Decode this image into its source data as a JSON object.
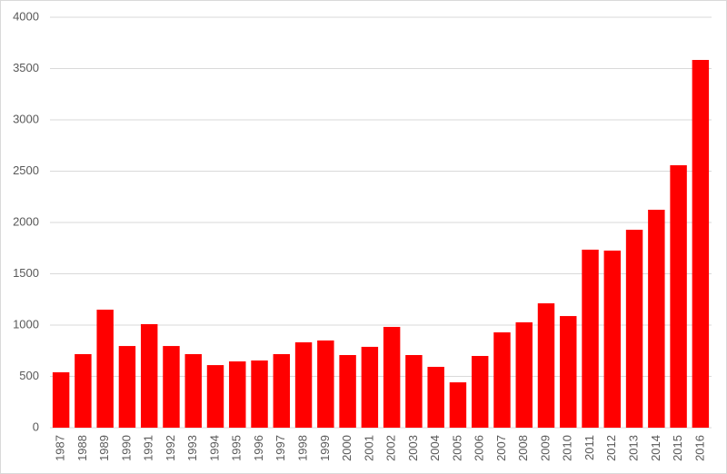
{
  "chart_data": {
    "type": "bar",
    "categories": [
      "1987",
      "1988",
      "1989",
      "1990",
      "1991",
      "1992",
      "1993",
      "1994",
      "1995",
      "1996",
      "1997",
      "1998",
      "1999",
      "2000",
      "2001",
      "2002",
      "2003",
      "2004",
      "2005",
      "2006",
      "2007",
      "2008",
      "2009",
      "2010",
      "2011",
      "2012",
      "2013",
      "2014",
      "2015",
      "2016"
    ],
    "values": [
      540,
      717,
      1150,
      796,
      1009,
      796,
      717,
      610,
      646,
      655,
      717,
      832,
      850,
      708,
      788,
      982,
      708,
      593,
      442,
      699,
      929,
      1027,
      1212,
      1088,
      1735,
      1726,
      1929,
      2124,
      2558,
      3584
    ],
    "color": "#ff0000",
    "ylim": [
      0,
      4000
    ],
    "yticks": [
      0,
      500,
      1000,
      1500,
      2000,
      2500,
      3000,
      3500,
      4000
    ],
    "grid": true
  }
}
